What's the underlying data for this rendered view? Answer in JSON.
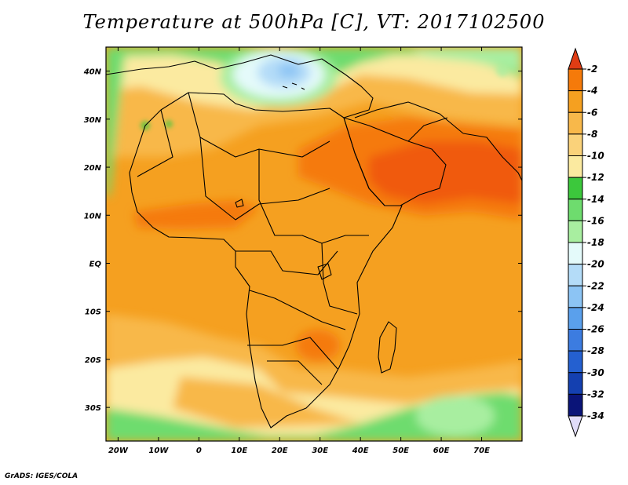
{
  "title": "Temperature at 500hPa [C], VT: 2017102500",
  "footer": "GrADS: IGES/COLA",
  "map": {
    "lon_labels": [
      "20W",
      "10W",
      "0",
      "10E",
      "20E",
      "30E",
      "40E",
      "50E",
      "60E",
      "70E"
    ],
    "lat_labels": [
      "40N",
      "30N",
      "20N",
      "10N",
      "EQ",
      "10S",
      "20S",
      "30S"
    ],
    "lon_range": [
      -23,
      80
    ],
    "lat_range": [
      -37,
      45
    ]
  },
  "colorbar": {
    "labels": [
      "-2",
      "-4",
      "-6",
      "-8",
      "-10",
      "-12",
      "-14",
      "-16",
      "-18",
      "-20",
      "-22",
      "-24",
      "-26",
      "-28",
      "-30",
      "-32",
      "-34"
    ],
    "colors": [
      "#f03c0a",
      "#f57a0a",
      "#f5a020",
      "#f8b84a",
      "#fad27a",
      "#fbeaa0",
      "#3cc83c",
      "#6edc6e",
      "#a8eea0",
      "#e4fafa",
      "#b4dcf8",
      "#8cc4f4",
      "#5aa0ec",
      "#3c7ce0",
      "#2460d0",
      "#1440b0",
      "#0a1478",
      "#d8d0f8"
    ],
    "top_color": "#e03c14",
    "bottom_color": "#e0dcf8"
  },
  "colors": {
    "ocean_base": "#f5a020",
    "land_warm": "#f8b84a",
    "hot": "#f57a0a",
    "very_hot": "#f05a10",
    "cool_green": "#6edc6e",
    "light_green": "#a8eea0",
    "pale_yellow": "#fbeaa0",
    "light_blue": "#b4dcf8",
    "mid_blue": "#8cc4f4"
  }
}
